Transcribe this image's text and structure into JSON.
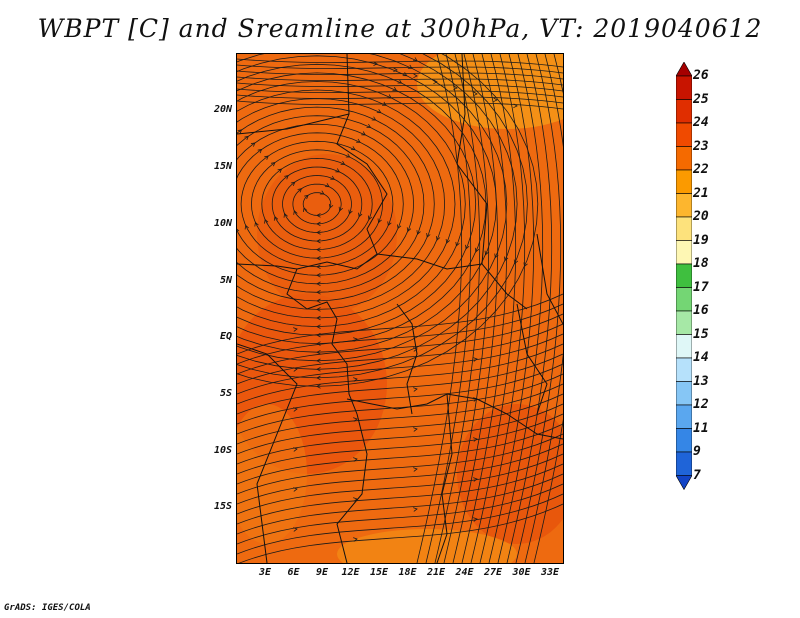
{
  "title": "WBPT [C] and Sreamline at 300hPa, VT: 2019040612",
  "footer": "GrADS: IGES/COLA",
  "map": {
    "field_color": "#ee6a10",
    "lat_labels": [
      "20N",
      "15N",
      "10N",
      "5N",
      "EQ",
      "5S",
      "10S",
      "15S"
    ],
    "lon_labels": [
      "3E",
      "6E",
      "9E",
      "12E",
      "15E",
      "18E",
      "21E",
      "24E",
      "27E",
      "30E",
      "33E"
    ]
  },
  "colorbar": {
    "labels": [
      "26",
      "25",
      "24",
      "23",
      "22",
      "21",
      "20",
      "19",
      "18",
      "17",
      "16",
      "15",
      "14",
      "13",
      "12",
      "11",
      "9",
      "7"
    ],
    "colors": [
      "#a50000",
      "#c81400",
      "#e02e00",
      "#f04a00",
      "#f56a00",
      "#fb9a00",
      "#fdb62e",
      "#fde27c",
      "#fef7b4",
      "#3fbf3f",
      "#74d674",
      "#a6e8a6",
      "#dff7f7",
      "#b6e1fb",
      "#86c6f5",
      "#5aa7ef",
      "#3586e6",
      "#1f64d8",
      "#1244c6"
    ]
  }
}
